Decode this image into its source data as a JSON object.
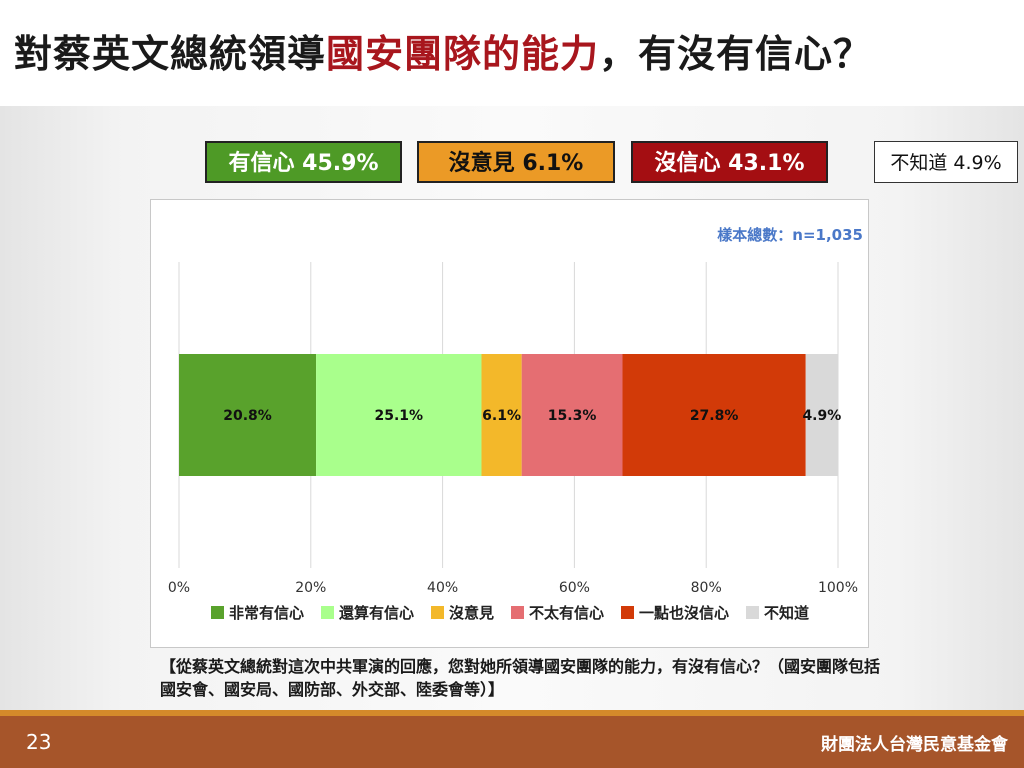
{
  "title": {
    "part1": "對蔡英文總統領導",
    "highlight": "國安團隊的能力",
    "part2": "，有沒有信心？"
  },
  "summary": [
    {
      "label": "有信心 45.9%",
      "color": "#4e9a26"
    },
    {
      "label": "沒意見 6.1%",
      "color": "#eb9a26"
    },
    {
      "label": "沒信心 43.1%",
      "color": "#a40e12"
    },
    {
      "label": "不知道 4.9%",
      "color": "#ffffff"
    }
  ],
  "chart_data": {
    "type": "bar",
    "orientation": "horizontal-stacked",
    "sample_note": "樣本總數：n=1,035",
    "xlim": [
      0,
      100
    ],
    "x_ticks": [
      "0%",
      "20%",
      "40%",
      "60%",
      "80%",
      "100%"
    ],
    "series": [
      {
        "name": "非常有信心",
        "value": 20.8,
        "label": "20.8%",
        "color": "#59a22c"
      },
      {
        "name": "還算有信心",
        "value": 25.1,
        "label": "25.1%",
        "color": "#a9ff8c"
      },
      {
        "name": "沒意見",
        "value": 6.1,
        "label": "6.1%",
        "color": "#f3b82a"
      },
      {
        "name": "不太有信心",
        "value": 15.3,
        "label": "15.3%",
        "color": "#e56e72"
      },
      {
        "name": "一點也沒信心",
        "value": 27.8,
        "label": "27.8%",
        "color": "#d23a08"
      },
      {
        "name": "不知道",
        "value": 4.9,
        "label": "4.9%",
        "color": "#d9d9d9"
      }
    ],
    "legend_position": "bottom",
    "grid": true
  },
  "question": "【從蔡英文總統對這次中共軍演的回應，您對她所領導國安團隊的能力，有沒有信心？（國安團隊包括國安會、國安局、國防部、外交部、陸委會等）】",
  "footer": {
    "page": "23",
    "org": "財團法人台灣民意基金會"
  }
}
